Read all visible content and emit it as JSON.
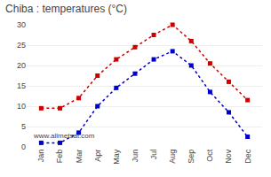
{
  "chart_data": {
    "type": "line",
    "title": "Chiba : temperatures (°C)",
    "categories": [
      "Jan",
      "Feb",
      "Mar",
      "Apr",
      "May",
      "Jun",
      "Jul",
      "Aug",
      "Sep",
      "Oct",
      "Nov",
      "Dec"
    ],
    "series": [
      {
        "color": "#cc0000",
        "values": [
          9.5,
          9.5,
          12.0,
          17.5,
          21.5,
          24.5,
          27.5,
          30.0,
          26.0,
          20.5,
          16.0,
          11.5
        ]
      },
      {
        "color": "#0000cc",
        "values": [
          1.0,
          1.0,
          3.5,
          10.0,
          14.5,
          18.0,
          21.5,
          23.5,
          20.0,
          13.5,
          8.5,
          2.5
        ]
      }
    ],
    "ylim": [
      0,
      30
    ],
    "yticks": [
      0,
      5,
      10,
      15,
      20,
      25,
      30
    ],
    "grid": true,
    "marker": "square",
    "line_style": "dotted",
    "annotations": [
      "www.allmetsat.com"
    ]
  }
}
